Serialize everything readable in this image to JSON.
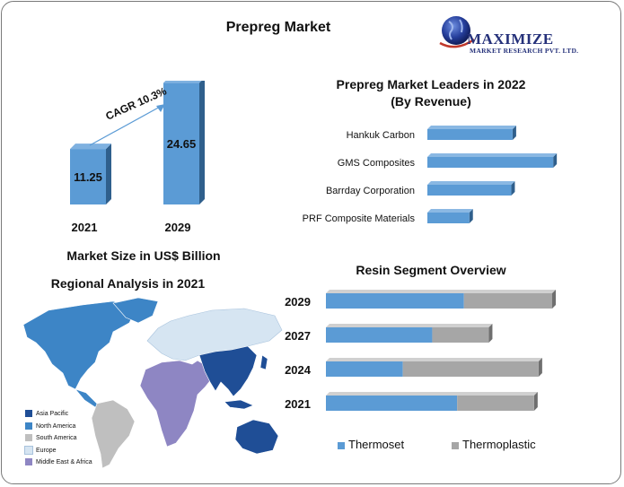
{
  "title": "Prepreg Market",
  "logo": {
    "name": "MAXIMIZE",
    "subtitle": "MARKET RESEARCH PVT. LTD."
  },
  "colors": {
    "bar": "#5b9bd5",
    "bar_dark": "#2f5f8c",
    "thermoplastic": "#a6a6a6",
    "asia": "#1f4e96",
    "north_america": "#3d85c6",
    "south_america": "#bfbfbf",
    "europe": "#d6e5f2",
    "mea": "#8e86c3"
  },
  "market_size": {
    "caption": "Market Size in US$ Billion",
    "cagr": "CAGR 10.3%",
    "chart_data": {
      "type": "bar",
      "categories": [
        "2021",
        "2029"
      ],
      "values": [
        11.25,
        24.65
      ],
      "labels": [
        "11.25",
        "24.65"
      ],
      "xlabel": "Market Size in US$ Billion",
      "ylim": [
        0,
        28
      ]
    }
  },
  "leaders": {
    "title_line1": "Prepreg Market Leaders in 2022",
    "title_line2": "(By Revenue)",
    "chart_data": {
      "type": "bar",
      "orientation": "horizontal",
      "categories": [
        "Hankuk Carbon",
        "GMS Composites",
        "Barrday Corporation",
        "PRF Composite Materials"
      ],
      "values": [
        65,
        96,
        64,
        32
      ],
      "ylim": [
        0,
        100
      ]
    }
  },
  "regional": {
    "title": "Regional Analysis in 2021",
    "legend": [
      "Asia Pacific",
      "North America",
      "South America",
      "Europe",
      "Middle East & Africa"
    ]
  },
  "resin": {
    "title": "Resin Segment Overview",
    "chart_data": {
      "type": "bar",
      "orientation": "horizontal",
      "stacked": true,
      "categories": [
        "2029",
        "2027",
        "2024",
        "2021"
      ],
      "series": [
        {
          "name": "Thermoset",
          "values": [
            61,
            47,
            34,
            58
          ]
        },
        {
          "name": "Thermoplastic",
          "values": [
            39,
            25,
            60,
            34
          ]
        }
      ],
      "ylim": [
        0,
        100
      ]
    }
  }
}
